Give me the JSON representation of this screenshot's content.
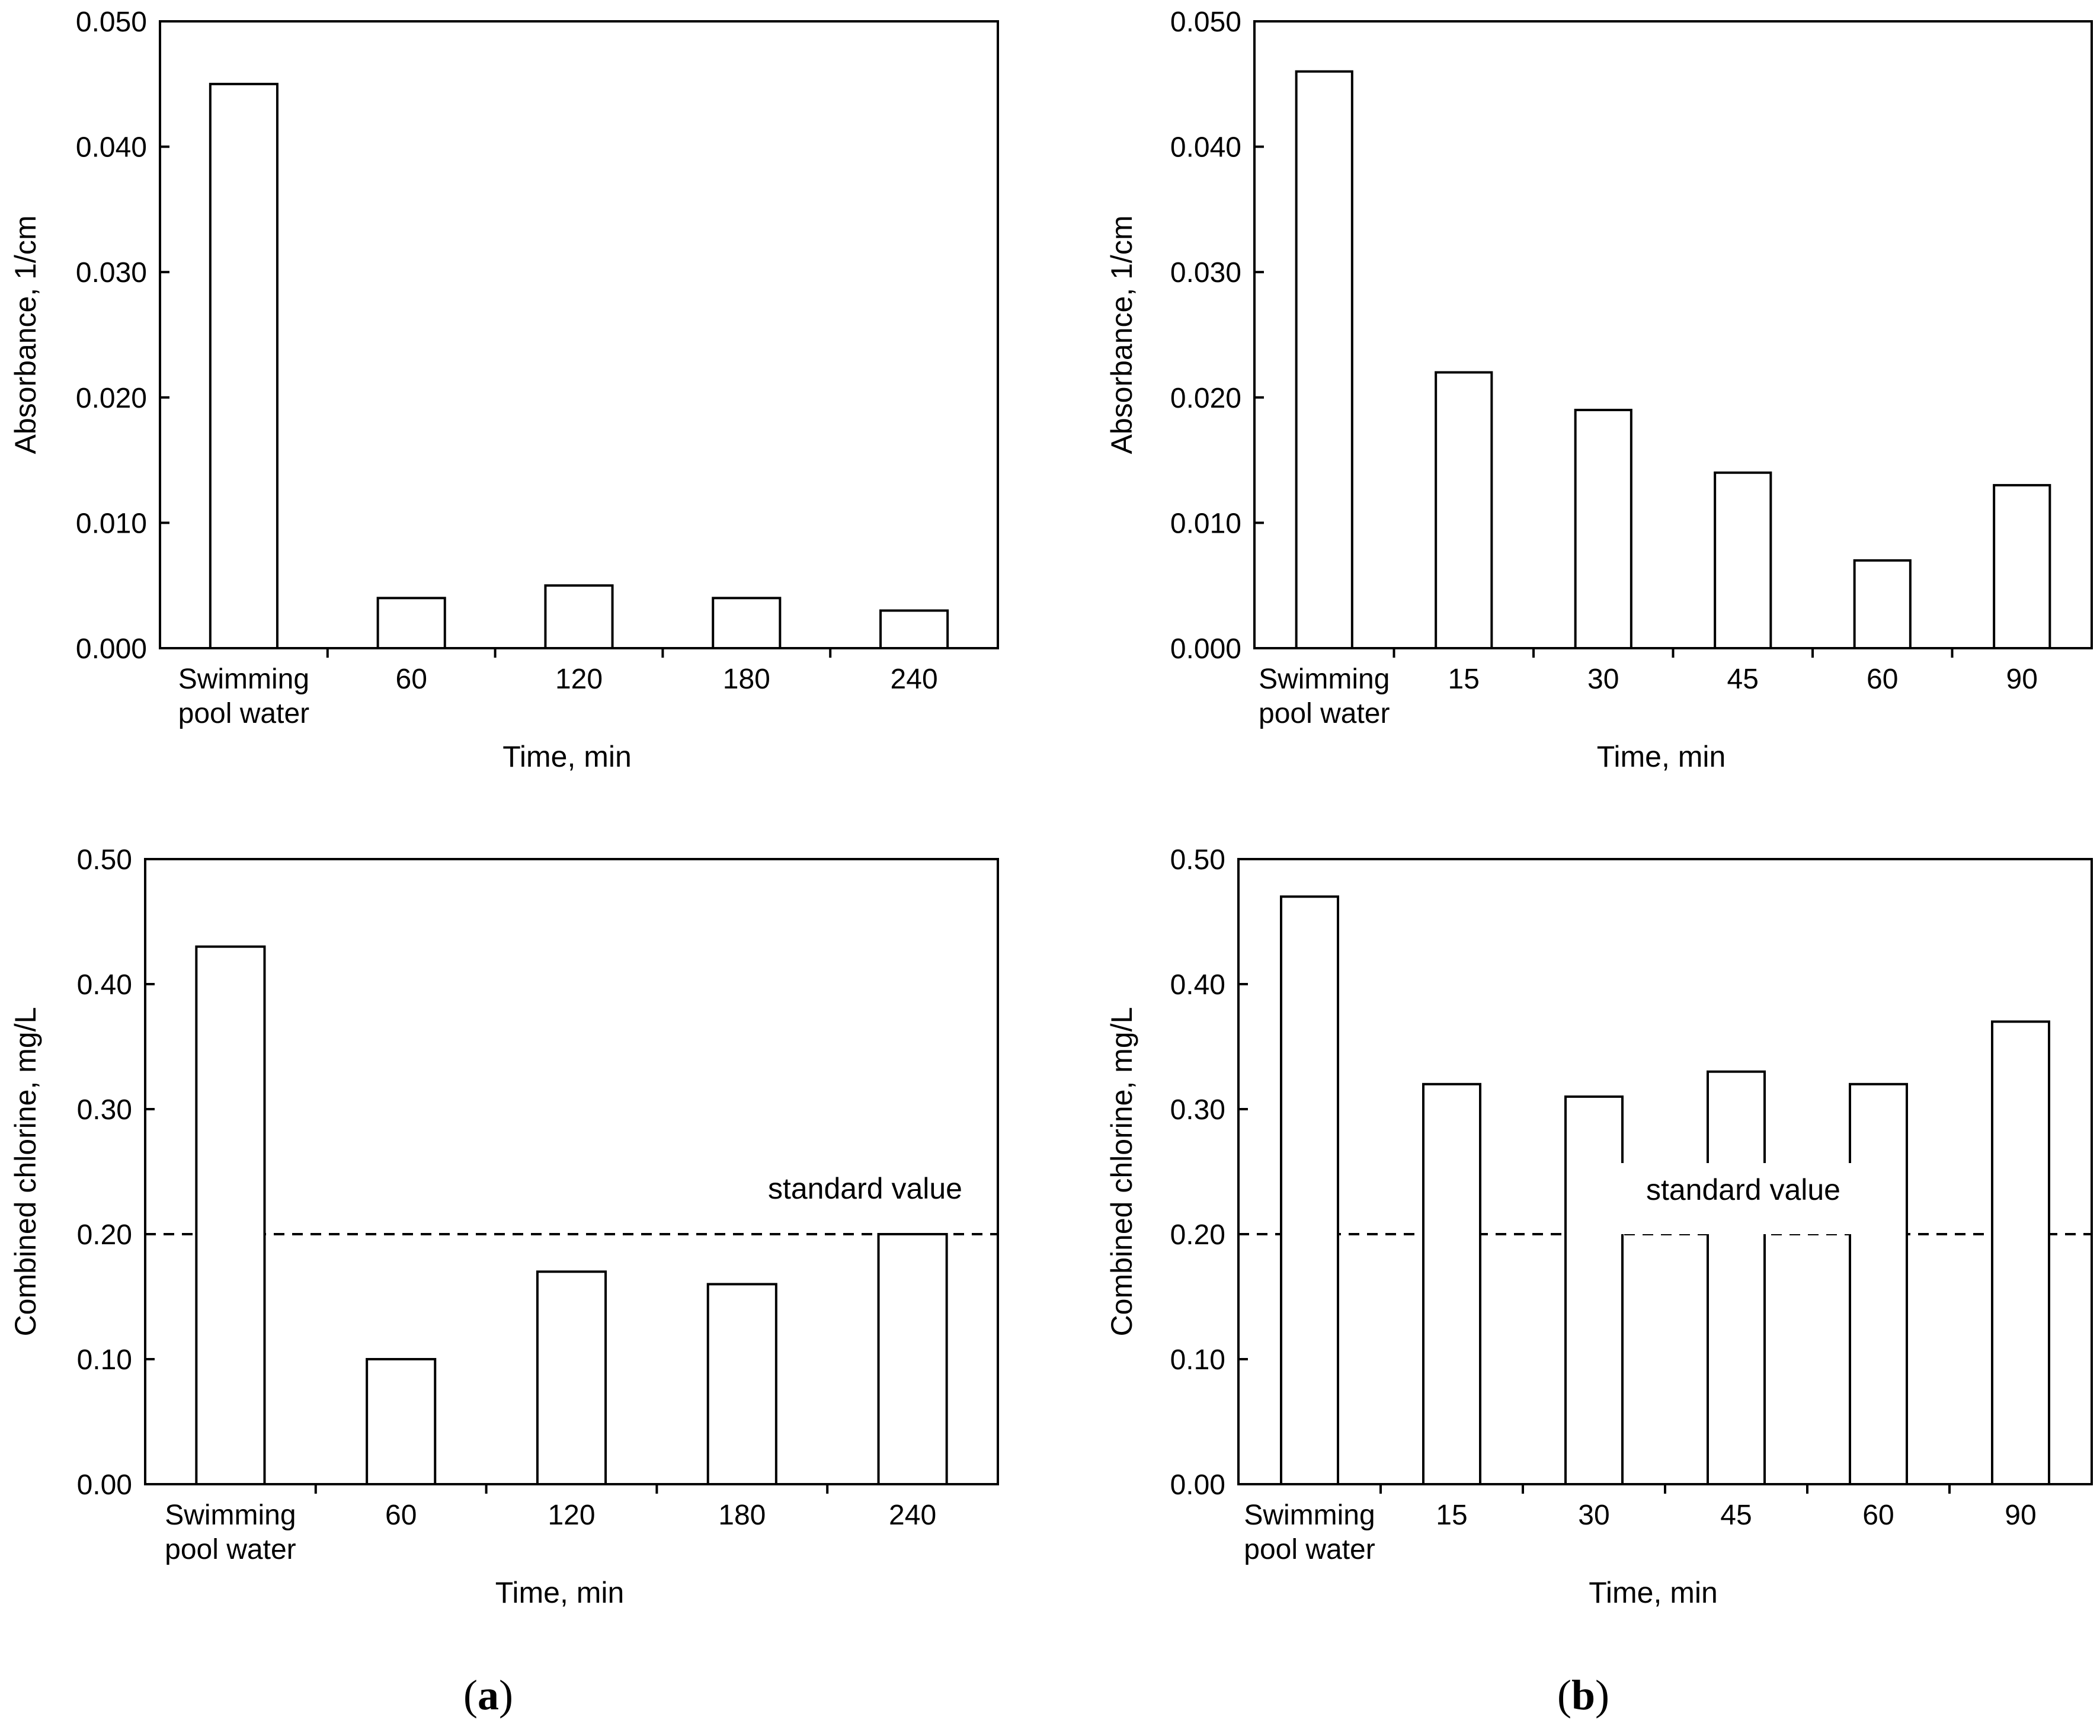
{
  "chart_data": [
    {
      "type": "bar",
      "panel": "a",
      "title": "",
      "categories": [
        "Swimming pool water",
        "60",
        "120",
        "180",
        "240"
      ],
      "category_lines": [
        [
          "Swimming",
          "pool water"
        ],
        [
          "60"
        ],
        [
          "120"
        ],
        [
          "180"
        ],
        [
          "240"
        ]
      ],
      "values": [
        0.045,
        0.004,
        0.005,
        0.004,
        0.003
      ],
      "xlabel": "Time, min",
      "ylabel": "Absorbance, 1/cm",
      "ylim": [
        0,
        0.05
      ],
      "yticks": [
        "0.000",
        "0.010",
        "0.020",
        "0.030",
        "0.040",
        "0.050"
      ],
      "grid": false,
      "reference_line": null
    },
    {
      "type": "bar",
      "panel": "b",
      "title": "",
      "categories": [
        "Swimming pool water",
        "15",
        "30",
        "45",
        "60",
        "90"
      ],
      "category_lines": [
        [
          "Swimming",
          "pool water"
        ],
        [
          "15"
        ],
        [
          "30"
        ],
        [
          "45"
        ],
        [
          "60"
        ],
        [
          "90"
        ]
      ],
      "values": [
        0.046,
        0.022,
        0.019,
        0.014,
        0.007,
        0.013
      ],
      "xlabel": "Time, min",
      "ylabel": "Absorbance, 1/cm",
      "ylim": [
        0,
        0.05
      ],
      "yticks": [
        "0.000",
        "0.010",
        "0.020",
        "0.030",
        "0.040",
        "0.050"
      ],
      "grid": false,
      "reference_line": null
    },
    {
      "type": "bar",
      "panel": "a",
      "title": "",
      "categories": [
        "Swimming pool water",
        "60",
        "120",
        "180",
        "240"
      ],
      "category_lines": [
        [
          "Swimming",
          "pool water"
        ],
        [
          "60"
        ],
        [
          "120"
        ],
        [
          "180"
        ],
        [
          "240"
        ]
      ],
      "values": [
        0.43,
        0.1,
        0.17,
        0.16,
        0.2
      ],
      "xlabel": "Time, min",
      "ylabel": "Combined chlorine, mg/L",
      "ylim": [
        0,
        0.5
      ],
      "yticks": [
        "0.00",
        "0.10",
        "0.20",
        "0.30",
        "0.40",
        "0.50"
      ],
      "grid": false,
      "reference_line": {
        "value": 0.2,
        "label": "standard value",
        "style": "dashed",
        "label_position": "above-right"
      }
    },
    {
      "type": "bar",
      "panel": "b",
      "title": "",
      "categories": [
        "Swimming pool water",
        "15",
        "30",
        "45",
        "60",
        "90"
      ],
      "category_lines": [
        [
          "Swimming",
          "pool water"
        ],
        [
          "15"
        ],
        [
          "30"
        ],
        [
          "45"
        ],
        [
          "60"
        ],
        [
          "90"
        ]
      ],
      "values": [
        0.47,
        0.32,
        0.31,
        0.33,
        0.32,
        0.37
      ],
      "xlabel": "Time, min",
      "ylabel": "Combined chlorine, mg/L",
      "ylim": [
        0,
        0.5
      ],
      "yticks": [
        "0.00",
        "0.10",
        "0.20",
        "0.30",
        "0.40",
        "0.50"
      ],
      "grid": false,
      "reference_line": {
        "value": 0.2,
        "label": "standard value",
        "style": "dashed",
        "label_position": "above-right"
      }
    }
  ],
  "panel_labels": [
    {
      "open": "(",
      "letter": "a",
      "close": ")"
    },
    {
      "open": "(",
      "letter": "b",
      "close": ")"
    }
  ]
}
